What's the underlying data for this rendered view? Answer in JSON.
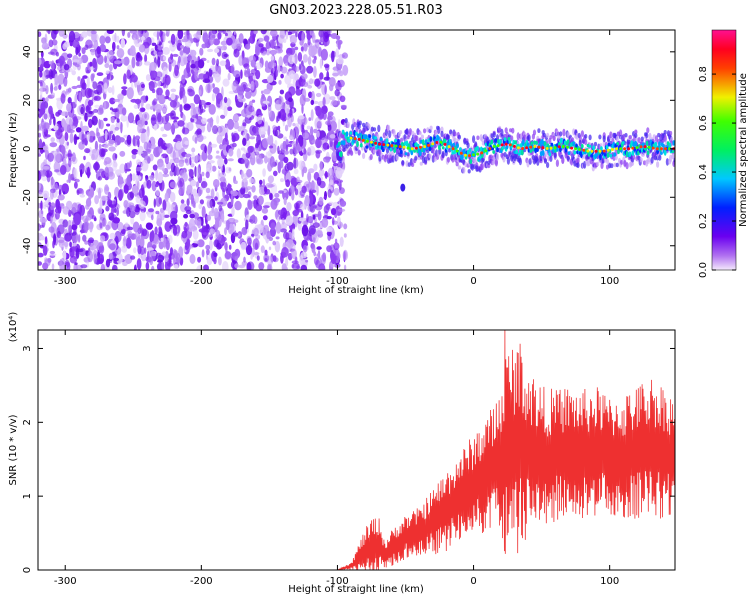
{
  "title": "GN03.2023.228.05.51.R03",
  "colors": {
    "snr_line": "#ee3030",
    "spectrogram_noise": "#7a1ef0",
    "spectrogram_signal": "#00e0e0",
    "axis": "#000000"
  },
  "chart_data": [
    {
      "type": "heatmap",
      "title": "GN03.2023.228.05.51.R03",
      "xlabel": "Height of straight line (km)",
      "ylabel": "Frequency (Hz)",
      "xlim": [
        -320,
        148
      ],
      "ylim": [
        -50,
        49
      ],
      "xticks": [
        -300,
        -200,
        -100,
        0,
        100
      ],
      "yticks": [
        -40,
        -20,
        0,
        20,
        40
      ],
      "grid": false,
      "colorbar": {
        "label": "Normalized spectral amplitude",
        "range": [
          0.0,
          0.98
        ],
        "ticks": [
          "0.0",
          "0.2",
          "0.4",
          "0.6",
          "0.8"
        ],
        "colormap": "rainbow (purple → blue → cyan → green → yellow → red → pink)"
      },
      "noise_region_x": [
        -320,
        -100
      ],
      "signal_region_x": [
        -100,
        148
      ],
      "signal_ridge": {
        "x": [
          -97,
          -85,
          -70,
          -55,
          -45,
          -35,
          -25,
          -15,
          -5,
          5,
          15,
          25,
          35,
          45,
          55,
          65,
          75,
          85,
          95,
          105,
          115,
          125,
          135,
          145
        ],
        "frequency_hz": [
          5,
          4,
          2,
          1,
          0,
          1,
          3,
          0,
          -3,
          -2,
          1,
          2,
          0,
          1,
          0,
          1,
          0,
          -1,
          -1,
          0,
          0,
          1,
          0,
          0
        ]
      },
      "isolated_blob": {
        "x": -52,
        "frequency_hz": -16
      }
    },
    {
      "type": "line",
      "xlabel": "Height of straight line (km)",
      "ylabel": "SNR (10 * v/v)",
      "y_multiplier": "(x10⁴)",
      "xlim": [
        -320,
        148
      ],
      "ylim": [
        0,
        3.25
      ],
      "xticks": [
        -300,
        -200,
        -100,
        0,
        100
      ],
      "yticks": [
        0,
        1,
        2,
        3
      ],
      "grid": false,
      "series": [
        {
          "x": [
            -320,
            -100,
            -90,
            -80,
            -75,
            -70,
            -65,
            -60,
            -50,
            -40,
            -30,
            -20,
            -10,
            0,
            10,
            20,
            22,
            25,
            30,
            35,
            40,
            45,
            50,
            60,
            70,
            80,
            90,
            100,
            110,
            120,
            130,
            140,
            148
          ],
          "y_mean": [
            0,
            0,
            0.05,
            0.25,
            0.3,
            0.35,
            0.2,
            0.3,
            0.45,
            0.5,
            0.65,
            0.8,
            1.0,
            1.15,
            1.3,
            1.45,
            1.5,
            1.6,
            1.65,
            1.7,
            1.6,
            1.55,
            1.5,
            1.55,
            1.6,
            1.55,
            1.6,
            1.55,
            1.5,
            1.6,
            1.65,
            1.6,
            1.55
          ],
          "y_spread": [
            0,
            0,
            0.05,
            0.3,
            0.4,
            0.4,
            0.2,
            0.25,
            0.3,
            0.35,
            0.45,
            0.55,
            0.6,
            0.7,
            0.8,
            1.0,
            1.6,
            1.4,
            1.5,
            1.4,
            1.2,
            1.1,
            1.0,
            0.9,
            0.9,
            0.9,
            0.9,
            0.8,
            0.9,
            0.9,
            1.0,
            0.9,
            0.8
          ],
          "peak": {
            "x": 23,
            "y": 3.25
          }
        }
      ]
    }
  ]
}
